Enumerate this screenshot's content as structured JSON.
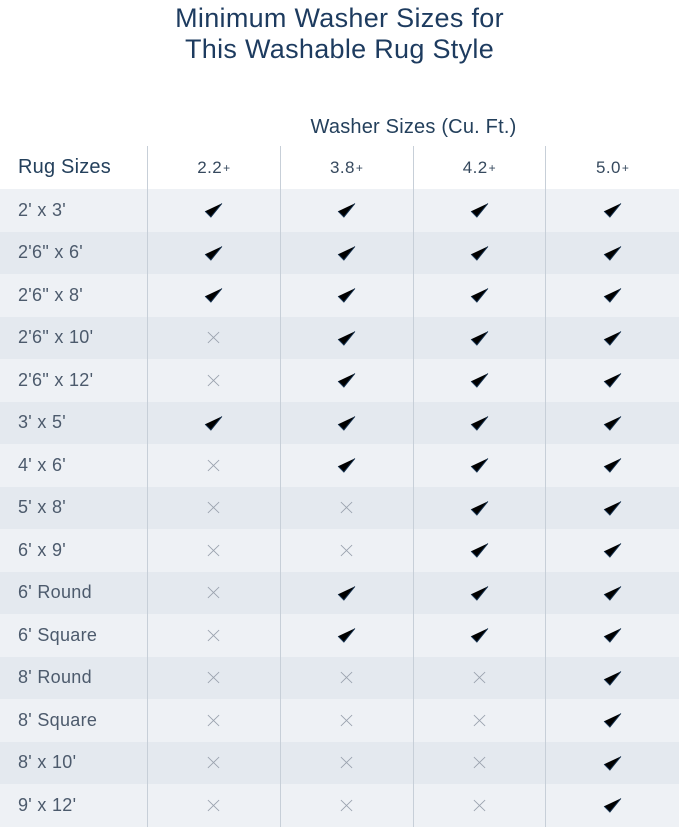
{
  "title": {
    "line1": "Minimum Washer Sizes for",
    "line2": "This Washable Rug Style"
  },
  "colors": {
    "title-navy": "#1d3b5f",
    "header-navy": "#24405c",
    "check-navy": "#14304e",
    "x-gray": "#9aa2ae",
    "stripe-light": "#eef1f5",
    "stripe-dark": "#e4e9ef",
    "divider": "#c7cfd8"
  },
  "icons": {
    "check": "check-icon",
    "x": "x-icon"
  },
  "chart_data": {
    "type": "table",
    "title": "Minimum Washer Sizes for This Washable Rug Style",
    "group_header": "Washer Sizes (Cu. Ft.)",
    "row_header_label": "Rug Sizes",
    "columns": [
      "2.2+",
      "3.8+",
      "4.2+",
      "5.0+"
    ],
    "rows": [
      {
        "label": "2' x 3'",
        "values": [
          "check",
          "check",
          "check",
          "check"
        ]
      },
      {
        "label": "2'6\" x 6'",
        "values": [
          "check",
          "check",
          "check",
          "check"
        ]
      },
      {
        "label": "2'6\" x 8'",
        "values": [
          "check",
          "check",
          "check",
          "check"
        ]
      },
      {
        "label": "2'6\" x 10'",
        "values": [
          "x",
          "check",
          "check",
          "check"
        ]
      },
      {
        "label": "2'6\" x 12'",
        "values": [
          "x",
          "check",
          "check",
          "check"
        ]
      },
      {
        "label": "3' x 5'",
        "values": [
          "check",
          "check",
          "check",
          "check"
        ]
      },
      {
        "label": "4' x 6'",
        "values": [
          "x",
          "check",
          "check",
          "check"
        ]
      },
      {
        "label": "5' x 8'",
        "values": [
          "x",
          "x",
          "check",
          "check"
        ]
      },
      {
        "label": "6' x 9'",
        "values": [
          "x",
          "x",
          "check",
          "check"
        ]
      },
      {
        "label": "6' Round",
        "values": [
          "x",
          "check",
          "check",
          "check"
        ]
      },
      {
        "label": "6' Square",
        "values": [
          "x",
          "check",
          "check",
          "check"
        ]
      },
      {
        "label": "8' Round",
        "values": [
          "x",
          "x",
          "x",
          "check"
        ]
      },
      {
        "label": "8' Square",
        "values": [
          "x",
          "x",
          "x",
          "check"
        ]
      },
      {
        "label": "8' x 10'",
        "values": [
          "x",
          "x",
          "x",
          "check"
        ]
      },
      {
        "label": "9' x 12'",
        "values": [
          "x",
          "x",
          "x",
          "check"
        ]
      }
    ]
  }
}
